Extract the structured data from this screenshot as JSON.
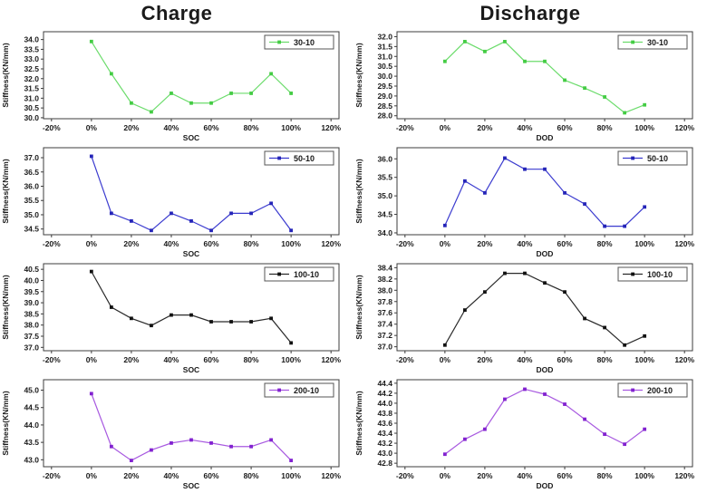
{
  "figure": {
    "background": "#ffffff",
    "column_titles": [
      "Charge",
      "Discharge"
    ]
  },
  "chart_data": [
    {
      "type": "line",
      "group": "Charge",
      "legend": "30-10",
      "line_color": "#6cdc6c",
      "marker_color": "#44cc44",
      "xlabel": "SOC",
      "ylabel": "Stiffness(KN/mm)",
      "x": [
        0,
        10,
        20,
        30,
        40,
        50,
        60,
        70,
        80,
        90,
        100
      ],
      "values": [
        33.9,
        32.25,
        30.75,
        30.3,
        31.25,
        30.75,
        30.75,
        31.25,
        31.25,
        32.25,
        31.25
      ],
      "xlim": [
        -24,
        124
      ],
      "ylim": [
        29.95,
        34.4
      ],
      "xticks": [
        -20,
        0,
        20,
        40,
        60,
        80,
        100,
        120
      ],
      "xtick_suffix": "%",
      "yticks": [
        30.0,
        30.5,
        31.0,
        31.5,
        32.0,
        32.5,
        33.0,
        33.5,
        34.0
      ],
      "ytick_decimals": 1,
      "legend_position": "top-right",
      "grid": false
    },
    {
      "type": "line",
      "group": "Discharge",
      "legend": "30-10",
      "line_color": "#6cdc6c",
      "marker_color": "#44cc44",
      "xlabel": "DOD",
      "ylabel": "Stiffness(KN/mm)",
      "x": [
        0,
        10,
        20,
        30,
        40,
        50,
        60,
        70,
        80,
        90,
        100
      ],
      "values": [
        30.75,
        31.75,
        31.25,
        31.75,
        30.75,
        30.75,
        29.8,
        29.4,
        28.95,
        28.15,
        28.55
      ],
      "xlim": [
        -24,
        124
      ],
      "ylim": [
        27.85,
        32.25
      ],
      "xticks": [
        -20,
        0,
        20,
        40,
        60,
        80,
        100,
        120
      ],
      "xtick_suffix": "%",
      "yticks": [
        28.0,
        28.5,
        29.0,
        29.5,
        30.0,
        30.5,
        31.0,
        31.5,
        32.0
      ],
      "ytick_decimals": 1,
      "legend_position": "top-right",
      "grid": false
    },
    {
      "type": "line",
      "group": "Charge",
      "legend": "50-10",
      "line_color": "#3b3bcf",
      "marker_color": "#2525b8",
      "xlabel": "SOC",
      "ylabel": "Stiffness(KN/mm)",
      "x": [
        0,
        10,
        20,
        30,
        40,
        50,
        60,
        70,
        80,
        90,
        100
      ],
      "values": [
        37.05,
        35.05,
        34.78,
        34.45,
        35.05,
        34.78,
        34.45,
        35.05,
        35.05,
        35.4,
        34.45
      ],
      "xlim": [
        -24,
        124
      ],
      "ylim": [
        34.3,
        37.35
      ],
      "xticks": [
        -20,
        0,
        20,
        40,
        60,
        80,
        100,
        120
      ],
      "xtick_suffix": "%",
      "yticks": [
        34.5,
        35.0,
        35.5,
        36.0,
        36.5,
        37.0
      ],
      "ytick_decimals": 1,
      "legend_position": "top-right",
      "grid": false
    },
    {
      "type": "line",
      "group": "Discharge",
      "legend": "50-10",
      "line_color": "#3b3bcf",
      "marker_color": "#2525b8",
      "xlabel": "DOD",
      "ylabel": "Stiffness(KN/mm)",
      "x": [
        0,
        10,
        20,
        30,
        40,
        50,
        60,
        70,
        80,
        90,
        100
      ],
      "values": [
        34.2,
        35.4,
        35.08,
        36.02,
        35.72,
        35.72,
        35.08,
        34.78,
        34.18,
        34.18,
        34.7
      ],
      "xlim": [
        -24,
        124
      ],
      "ylim": [
        33.95,
        36.3
      ],
      "xticks": [
        -20,
        0,
        20,
        40,
        60,
        80,
        100,
        120
      ],
      "xtick_suffix": "%",
      "yticks": [
        34.0,
        34.5,
        35.0,
        35.5,
        36.0
      ],
      "ytick_decimals": 1,
      "legend_position": "top-right",
      "grid": false
    },
    {
      "type": "line",
      "group": "Charge",
      "legend": "100-10",
      "line_color": "#2a2a2a",
      "marker_color": "#111111",
      "xlabel": "SOC",
      "ylabel": "Stiffness(KN/mm)",
      "x": [
        0,
        10,
        20,
        30,
        40,
        50,
        60,
        70,
        80,
        90,
        100
      ],
      "values": [
        40.4,
        38.8,
        38.3,
        37.98,
        38.45,
        38.45,
        38.15,
        38.15,
        38.15,
        38.3,
        37.2
      ],
      "xlim": [
        -24,
        124
      ],
      "ylim": [
        36.85,
        40.75
      ],
      "xticks": [
        -20,
        0,
        20,
        40,
        60,
        80,
        100,
        120
      ],
      "xtick_suffix": "%",
      "yticks": [
        37.0,
        37.5,
        38.0,
        38.5,
        39.0,
        39.5,
        40.0,
        40.5
      ],
      "ytick_decimals": 1,
      "legend_position": "top-right",
      "grid": false
    },
    {
      "type": "line",
      "group": "Discharge",
      "legend": "100-10",
      "line_color": "#2a2a2a",
      "marker_color": "#111111",
      "xlabel": "DOD",
      "ylabel": "Stiffness(KN/mm)",
      "x": [
        0,
        10,
        20,
        30,
        40,
        50,
        60,
        70,
        80,
        90,
        100
      ],
      "values": [
        37.03,
        37.65,
        37.97,
        38.3,
        38.3,
        38.13,
        37.97,
        37.5,
        37.34,
        37.03,
        37.19
      ],
      "xlim": [
        -24,
        124
      ],
      "ylim": [
        36.93,
        38.47
      ],
      "xticks": [
        -20,
        0,
        20,
        40,
        60,
        80,
        100,
        120
      ],
      "xtick_suffix": "%",
      "yticks": [
        37.0,
        37.2,
        37.4,
        37.6,
        37.8,
        38.0,
        38.2,
        38.4
      ],
      "ytick_decimals": 1,
      "legend_position": "top-right",
      "grid": false
    },
    {
      "type": "line",
      "group": "Charge",
      "legend": "200-10",
      "line_color": "#a85ae0",
      "marker_color": "#8222d0",
      "xlabel": "SOC",
      "ylabel": "Stiffness(KN/mm)",
      "x": [
        0,
        10,
        20,
        30,
        40,
        50,
        60,
        70,
        80,
        90,
        100
      ],
      "values": [
        44.9,
        43.38,
        42.98,
        43.28,
        43.48,
        43.57,
        43.48,
        43.38,
        43.38,
        43.57,
        42.98
      ],
      "xlim": [
        -24,
        124
      ],
      "ylim": [
        42.8,
        45.3
      ],
      "xticks": [
        -20,
        0,
        20,
        40,
        60,
        80,
        100,
        120
      ],
      "xtick_suffix": "%",
      "yticks": [
        43.0,
        43.5,
        44.0,
        44.5,
        45.0
      ],
      "ytick_decimals": 1,
      "legend_position": "top-right",
      "grid": false
    },
    {
      "type": "line",
      "group": "Discharge",
      "legend": "200-10",
      "line_color": "#a85ae0",
      "marker_color": "#8222d0",
      "xlabel": "DOD",
      "ylabel": "Stiffness(KN/mm)",
      "x": [
        0,
        10,
        20,
        30,
        40,
        50,
        60,
        70,
        80,
        90,
        100
      ],
      "values": [
        42.98,
        43.28,
        43.48,
        44.08,
        44.28,
        44.18,
        43.98,
        43.68,
        43.38,
        43.18,
        43.48
      ],
      "xlim": [
        -24,
        124
      ],
      "ylim": [
        42.73,
        44.47
      ],
      "xticks": [
        -20,
        0,
        20,
        40,
        60,
        80,
        100,
        120
      ],
      "xtick_suffix": "%",
      "yticks": [
        42.8,
        43.0,
        43.2,
        43.4,
        43.6,
        43.8,
        44.0,
        44.2,
        44.4
      ],
      "ytick_decimals": 1,
      "legend_position": "top-right",
      "grid": false
    }
  ]
}
